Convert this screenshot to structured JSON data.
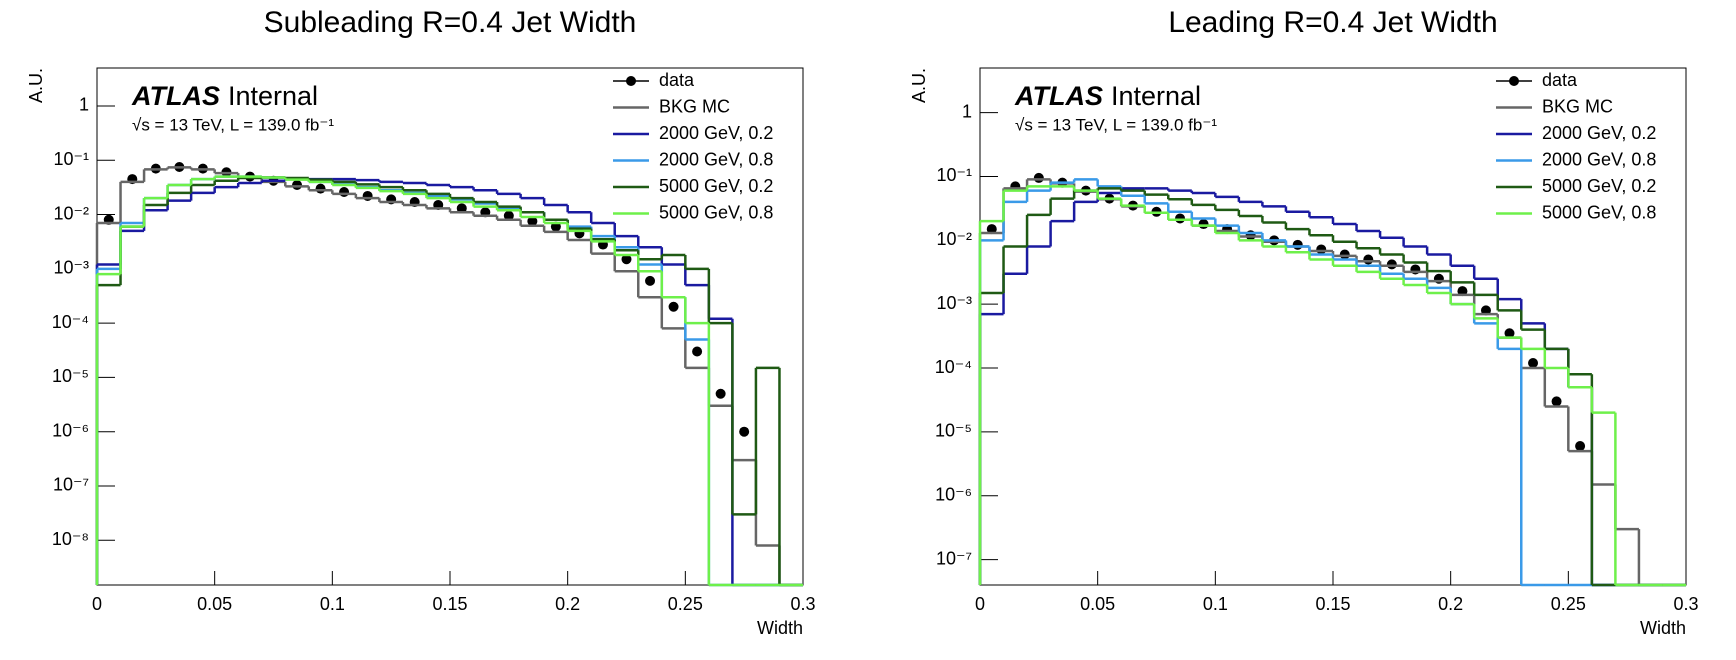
{
  "chart_data": [
    {
      "type": "histogram",
      "title": "Subleading R=0.4 Jet Width",
      "xlabel": "Width",
      "ylabel": "A.U.",
      "annotations": [
        "ATLAS",
        "Internal",
        "√s = 13 TeV, L = 139.0 fb⁻¹"
      ],
      "log_y": true,
      "legend": "top-right",
      "xlim": [
        0,
        0.3
      ],
      "xticks": [
        0,
        0.05,
        0.1,
        0.15,
        0.2,
        0.25,
        0.3
      ],
      "ylim": [
        1.5e-09,
        5
      ],
      "yticks": [
        {
          "value": 1e-08,
          "label": "10⁻⁸"
        },
        {
          "value": 1e-07,
          "label": "10⁻⁷"
        },
        {
          "value": 1e-06,
          "label": "10⁻⁶"
        },
        {
          "value": 1e-05,
          "label": "10⁻⁵"
        },
        {
          "value": 0.0001,
          "label": "10⁻⁴"
        },
        {
          "value": 0.001,
          "label": "10⁻³"
        },
        {
          "value": 0.01,
          "label": "10⁻²"
        },
        {
          "value": 0.1,
          "label": "10⁻¹"
        },
        1
      ],
      "bins": [
        0,
        0.01,
        0.02,
        0.03,
        0.04,
        0.05,
        0.06,
        0.07,
        0.08,
        0.09,
        0.1,
        0.11,
        0.12,
        0.13,
        0.14,
        0.15,
        0.16,
        0.17,
        0.18,
        0.19,
        0.2,
        0.21,
        0.22,
        0.23,
        0.24,
        0.25,
        0.26,
        0.27,
        0.28,
        0.29,
        0.3
      ],
      "series": [
        {
          "name": "data",
          "color": "#000000",
          "style": "points",
          "values": [
            0.008,
            0.045,
            0.07,
            0.075,
            0.07,
            0.06,
            0.05,
            0.042,
            0.035,
            0.03,
            0.026,
            0.022,
            0.019,
            0.017,
            0.015,
            0.013,
            0.011,
            0.0095,
            0.0075,
            0.006,
            0.0045,
            0.0028,
            0.0015,
            0.0006,
            0.0002,
            3e-05,
            5e-06,
            1e-06,
            0,
            0
          ]
        },
        {
          "name": "BKG MC",
          "color": "#666666",
          "style": "step",
          "values": [
            0.007,
            0.04,
            0.068,
            0.074,
            0.068,
            0.058,
            0.048,
            0.04,
            0.033,
            0.028,
            0.024,
            0.02,
            0.017,
            0.015,
            0.013,
            0.011,
            0.0095,
            0.008,
            0.0062,
            0.0048,
            0.0034,
            0.0019,
            0.0009,
            0.0003,
            8e-05,
            1.5e-05,
            3e-06,
            3e-07,
            8e-09,
            0
          ]
        },
        {
          "name": "2000 GeV, 0.2",
          "color": "#1a1aa0",
          "style": "step",
          "values": [
            0.0012,
            0.005,
            0.012,
            0.018,
            0.025,
            0.032,
            0.038,
            0.042,
            0.045,
            0.045,
            0.045,
            0.043,
            0.04,
            0.038,
            0.035,
            0.032,
            0.028,
            0.024,
            0.02,
            0.015,
            0.011,
            0.007,
            0.004,
            0.0025,
            0.0012,
            0.0005,
            0.00012,
            0,
            0,
            0
          ]
        },
        {
          "name": "2000 GeV, 0.8",
          "color": "#3a9ae8",
          "style": "step",
          "values": [
            0.001,
            0.007,
            0.02,
            0.035,
            0.045,
            0.05,
            0.05,
            0.048,
            0.045,
            0.04,
            0.036,
            0.032,
            0.028,
            0.025,
            0.022,
            0.019,
            0.016,
            0.013,
            0.011,
            0.008,
            0.006,
            0.004,
            0.0025,
            0.0012,
            0.0003,
            5e-05,
            0,
            0,
            0,
            0
          ]
        },
        {
          "name": "5000 GeV, 0.2",
          "color": "#1f5a14",
          "style": "step",
          "values": [
            0.0005,
            0.006,
            0.015,
            0.025,
            0.035,
            0.042,
            0.047,
            0.048,
            0.047,
            0.044,
            0.04,
            0.036,
            0.032,
            0.028,
            0.024,
            0.02,
            0.017,
            0.014,
            0.011,
            0.008,
            0.0055,
            0.0035,
            0.0022,
            0.0015,
            0.0018,
            0.001,
            0.0001,
            3e-08,
            1.5e-05,
            0
          ]
        },
        {
          "name": "5000 GeV, 0.8",
          "color": "#6ef04a",
          "style": "step",
          "values": [
            0.0008,
            0.006,
            0.02,
            0.035,
            0.045,
            0.05,
            0.05,
            0.048,
            0.044,
            0.04,
            0.035,
            0.031,
            0.027,
            0.024,
            0.02,
            0.017,
            0.014,
            0.012,
            0.009,
            0.007,
            0.005,
            0.0032,
            0.0018,
            0.0009,
            0.0003,
            0.0001,
            0,
            0,
            0,
            0
          ]
        }
      ]
    },
    {
      "type": "histogram",
      "title": "Leading R=0.4 Jet Width",
      "xlabel": "Width",
      "ylabel": "A.U.",
      "annotations": [
        "ATLAS",
        "Internal",
        "√s = 13 TeV, L = 139.0 fb⁻¹"
      ],
      "log_y": true,
      "legend": "top-right",
      "xlim": [
        0,
        0.3
      ],
      "xticks": [
        0,
        0.05,
        0.1,
        0.15,
        0.2,
        0.25,
        0.3
      ],
      "ylim": [
        4e-08,
        5
      ],
      "yticks": [
        {
          "value": 1e-07,
          "label": "10⁻⁷"
        },
        {
          "value": 1e-06,
          "label": "10⁻⁶"
        },
        {
          "value": 1e-05,
          "label": "10⁻⁵"
        },
        {
          "value": 0.0001,
          "label": "10⁻⁴"
        },
        {
          "value": 0.001,
          "label": "10⁻³"
        },
        {
          "value": 0.01,
          "label": "10⁻²"
        },
        {
          "value": 0.1,
          "label": "10⁻¹"
        },
        1
      ],
      "bins": [
        0,
        0.01,
        0.02,
        0.03,
        0.04,
        0.05,
        0.06,
        0.07,
        0.08,
        0.09,
        0.1,
        0.11,
        0.12,
        0.13,
        0.14,
        0.15,
        0.16,
        0.17,
        0.18,
        0.19,
        0.2,
        0.21,
        0.22,
        0.23,
        0.24,
        0.25,
        0.26,
        0.27,
        0.28,
        0.29,
        0.3
      ],
      "series": [
        {
          "name": "data",
          "color": "#000000",
          "style": "points",
          "values": [
            0.015,
            0.07,
            0.095,
            0.08,
            0.06,
            0.045,
            0.035,
            0.028,
            0.022,
            0.018,
            0.015,
            0.012,
            0.01,
            0.0085,
            0.0072,
            0.006,
            0.005,
            0.0042,
            0.0035,
            0.0025,
            0.0016,
            0.0008,
            0.00035,
            0.00012,
            3e-05,
            6e-06,
            0,
            0,
            0,
            0
          ]
        },
        {
          "name": "BKG MC",
          "color": "#666666",
          "style": "step",
          "values": [
            0.013,
            0.065,
            0.09,
            0.078,
            0.058,
            0.044,
            0.034,
            0.027,
            0.021,
            0.017,
            0.014,
            0.0115,
            0.0095,
            0.008,
            0.0068,
            0.0057,
            0.0047,
            0.004,
            0.0032,
            0.0023,
            0.0014,
            0.0007,
            0.0003,
            0.0001,
            2.5e-05,
            5e-06,
            1.5e-06,
            3e-07,
            0,
            0
          ]
        },
        {
          "name": "2000 GeV, 0.2",
          "color": "#1a1aa0",
          "style": "step",
          "values": [
            0.0007,
            0.003,
            0.008,
            0.02,
            0.04,
            0.055,
            0.065,
            0.065,
            0.06,
            0.055,
            0.048,
            0.04,
            0.034,
            0.028,
            0.023,
            0.018,
            0.014,
            0.011,
            0.008,
            0.006,
            0.004,
            0.0025,
            0.0012,
            0.0005,
            0.0002,
            5e-05,
            0,
            0,
            0,
            0
          ]
        },
        {
          "name": "2000 GeV, 0.8",
          "color": "#3a9ae8",
          "style": "step",
          "values": [
            0.01,
            0.04,
            0.06,
            0.08,
            0.09,
            0.07,
            0.05,
            0.038,
            0.028,
            0.022,
            0.017,
            0.013,
            0.01,
            0.008,
            0.006,
            0.005,
            0.004,
            0.003,
            0.0025,
            0.0018,
            0.001,
            0.0005,
            0.0002,
            0,
            0,
            0,
            0,
            0,
            0,
            0
          ]
        },
        {
          "name": "5000 GeV, 0.2",
          "color": "#1f5a14",
          "style": "step",
          "values": [
            0.0015,
            0.008,
            0.025,
            0.045,
            0.06,
            0.065,
            0.06,
            0.052,
            0.044,
            0.036,
            0.03,
            0.024,
            0.019,
            0.015,
            0.012,
            0.0095,
            0.0075,
            0.006,
            0.0045,
            0.0033,
            0.0022,
            0.0014,
            0.0008,
            0.0004,
            0.0002,
            8e-05,
            0,
            0,
            0,
            0
          ]
        },
        {
          "name": "5000 GeV, 0.8",
          "color": "#6ef04a",
          "style": "step",
          "values": [
            0.02,
            0.06,
            0.07,
            0.07,
            0.06,
            0.045,
            0.035,
            0.027,
            0.021,
            0.017,
            0.013,
            0.01,
            0.008,
            0.0065,
            0.005,
            0.004,
            0.0032,
            0.0025,
            0.002,
            0.0015,
            0.001,
            0.0006,
            0.0003,
            0.0002,
            0.0001,
            5e-05,
            2e-05,
            0,
            0,
            0
          ]
        }
      ]
    }
  ]
}
